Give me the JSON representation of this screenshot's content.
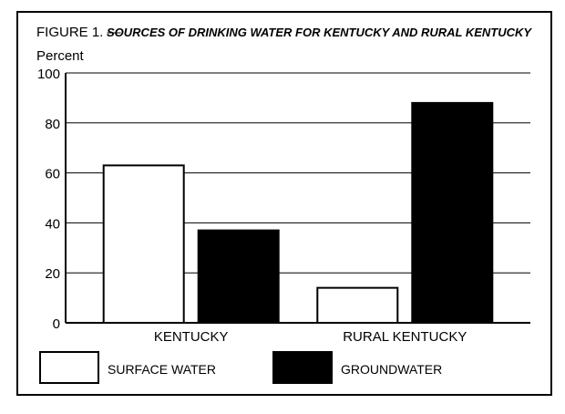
{
  "chart_data": {
    "type": "bar",
    "figure_label": "FIGURE 1. —",
    "title": "SOURCES OF DRINKING WATER FOR KENTUCKY AND RURAL KENTUCKY",
    "ylabel": "Percent",
    "ylim": [
      0,
      100
    ],
    "yticks": [
      "0",
      "20",
      "40",
      "60",
      "80",
      "100"
    ],
    "grid": true,
    "categories": [
      "KENTUCKY",
      "RURAL KENTUCKY"
    ],
    "series": [
      {
        "name": "SURFACE WATER",
        "values": [
          63,
          14
        ],
        "color": "#ffffff"
      },
      {
        "name": "GROUNDWATER",
        "values": [
          37,
          88
        ],
        "color": "#000000"
      }
    ],
    "legend_position": "bottom"
  }
}
